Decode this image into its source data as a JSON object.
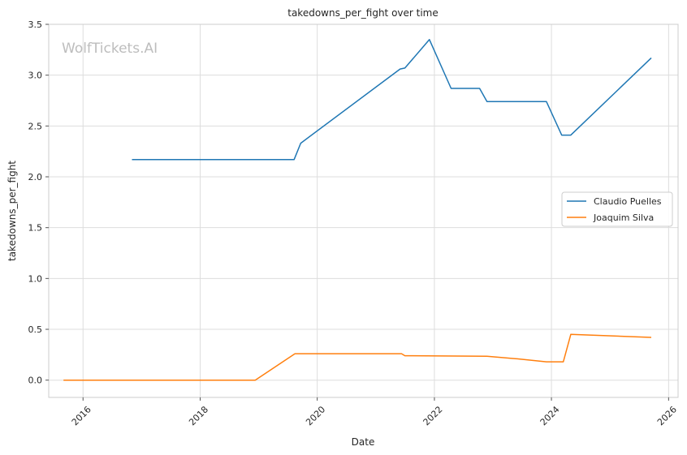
{
  "watermark": "WolfTickets.AI",
  "chart_data": {
    "type": "line",
    "title": "takedowns_per_fight over time",
    "xlabel": "Date",
    "ylabel": "takedowns_per_fight",
    "x_ticks": [
      "2016",
      "2018",
      "2020",
      "2022",
      "2024",
      "2026"
    ],
    "y_ticks": [
      "0.0",
      "0.5",
      "1.0",
      "1.5",
      "2.0",
      "2.5",
      "3.0",
      "3.5"
    ],
    "xlim": [
      "2015-06-01",
      "2026-03-01"
    ],
    "ylim": [
      -0.17,
      3.5
    ],
    "grid": true,
    "legend_position": "center-right",
    "series": [
      {
        "name": "Claudio Puelles",
        "color": "#1f77b4",
        "points": [
          [
            "2016-11-01",
            2.17
          ],
          [
            "2019-08-10",
            2.17
          ],
          [
            "2019-09-20",
            2.33
          ],
          [
            "2021-06-01",
            3.06
          ],
          [
            "2021-07-01",
            3.07
          ],
          [
            "2021-12-01",
            3.35
          ],
          [
            "2022-04-15",
            2.87
          ],
          [
            "2022-10-10",
            2.87
          ],
          [
            "2022-11-25",
            2.74
          ],
          [
            "2023-12-01",
            2.74
          ],
          [
            "2024-03-05",
            2.41
          ],
          [
            "2024-05-01",
            2.41
          ],
          [
            "2025-09-15",
            3.17
          ]
        ]
      },
      {
        "name": "Joaquim Silva",
        "color": "#ff7f0e",
        "points": [
          [
            "2015-09-01",
            0.0
          ],
          [
            "2018-12-10",
            0.0
          ],
          [
            "2019-08-15",
            0.26
          ],
          [
            "2021-06-10",
            0.26
          ],
          [
            "2021-07-01",
            0.24
          ],
          [
            "2022-11-25",
            0.235
          ],
          [
            "2023-06-01",
            0.21
          ],
          [
            "2023-12-01",
            0.18
          ],
          [
            "2024-03-15",
            0.18
          ],
          [
            "2024-05-01",
            0.45
          ],
          [
            "2025-09-15",
            0.42
          ]
        ]
      }
    ]
  }
}
